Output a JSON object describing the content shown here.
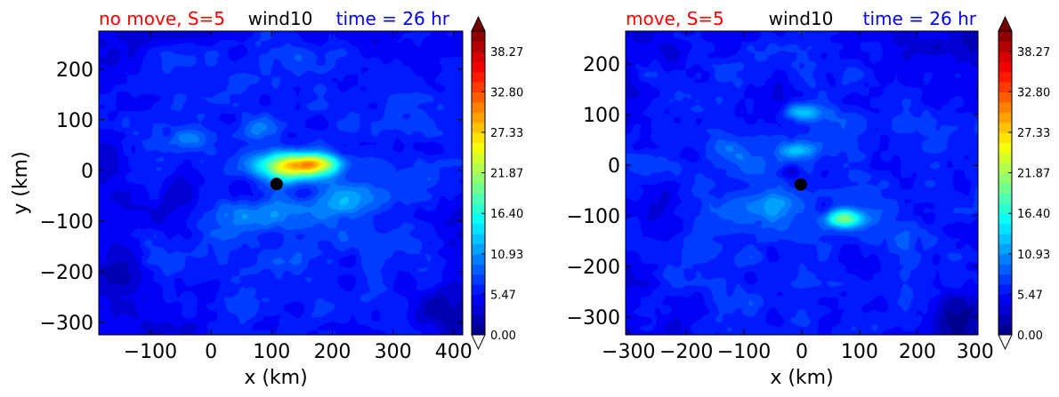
{
  "chart_data": [
    {
      "type": "heatmap",
      "variant": "filled-contour",
      "title_left": "no move, S=5",
      "title_left_color": "#ff0000",
      "title_center": "wind10",
      "title_center_color": "#000000",
      "title_right": "time = 26 hr",
      "title_right_color": "#0000ff",
      "xlabel": "x (km)",
      "ylabel": "y (km)",
      "xlim": [
        -185,
        415
      ],
      "ylim": [
        -325,
        275
      ],
      "xticks": [
        -100,
        0,
        100,
        200,
        300,
        400
      ],
      "xtick_labels": [
        "−100",
        "0",
        "100",
        "200",
        "300",
        "400"
      ],
      "yticks": [
        200,
        100,
        0,
        -100,
        -200,
        -300
      ],
      "ytick_labels": [
        "200",
        "100",
        "0",
        "−100",
        "−200",
        "−300"
      ],
      "marker": {
        "x": 108,
        "y": -27,
        "color": "#000000"
      },
      "background_level": 6.5,
      "features": [
        {
          "x": 140,
          "y": 10,
          "sx": 60,
          "sy": 25,
          "value": 18
        },
        {
          "x": 175,
          "y": 15,
          "sx": 35,
          "sy": 18,
          "value": 8
        },
        {
          "x": 100,
          "y": 0,
          "sx": 50,
          "sy": 45,
          "value": 4
        },
        {
          "x": 210,
          "y": -60,
          "sx": 55,
          "sy": 40,
          "value": 6
        },
        {
          "x": 60,
          "y": -80,
          "sx": 70,
          "sy": 50,
          "value": 4
        },
        {
          "x": 80,
          "y": 85,
          "sx": 30,
          "sy": 25,
          "value": 4
        },
        {
          "x": -40,
          "y": 60,
          "sx": 25,
          "sy": 20,
          "value": 5
        },
        {
          "x": 60,
          "y": -40,
          "sx": 30,
          "sy": 45,
          "value": -3.5
        },
        {
          "x": 150,
          "y": -40,
          "sx": 25,
          "sy": 20,
          "value": -3
        },
        {
          "x": -60,
          "y": -80,
          "sx": 40,
          "sy": 60,
          "value": -3
        },
        {
          "x": -140,
          "y": -200,
          "sx": 35,
          "sy": 35,
          "value": -3.5
        },
        {
          "x": 20,
          "y": 100,
          "sx": 40,
          "sy": 25,
          "value": -2
        },
        {
          "x": -150,
          "y": 0,
          "sx": 40,
          "sy": 100,
          "value": -2
        },
        {
          "x": 380,
          "y": -280,
          "sx": 60,
          "sy": 40,
          "value": -2.5
        }
      ],
      "colorbar": {
        "min": 0,
        "max": 41,
        "ticks": [
          0.0,
          5.47,
          10.93,
          16.4,
          21.87,
          27.33,
          32.8,
          38.27
        ],
        "tick_labels": [
          "0.00",
          "5.47",
          "10.93",
          "16.40",
          "21.87",
          "27.33",
          "32.80",
          "38.27"
        ],
        "colormap": "jet",
        "levels": 30
      }
    },
    {
      "type": "heatmap",
      "variant": "filled-contour",
      "title_left": "move, S=5",
      "title_left_color": "#ff0000",
      "title_center": "wind10",
      "title_center_color": "#000000",
      "title_right": "time = 26 hr",
      "title_right_color": "#0000ff",
      "xlabel": "x (km)",
      "ylabel": "",
      "xlim": [
        -305,
        305
      ],
      "ylim": [
        -335,
        265
      ],
      "xticks": [
        -300,
        -200,
        -100,
        0,
        100,
        200,
        300
      ],
      "xtick_labels": [
        "−300",
        "−200",
        "−100",
        "0",
        "100",
        "200",
        "300"
      ],
      "yticks": [
        200,
        100,
        0,
        -100,
        -200,
        -300
      ],
      "ytick_labels": [
        "200",
        "100",
        "0",
        "−100",
        "−200",
        "−300"
      ],
      "marker": {
        "x": -2,
        "y": -38,
        "color": "#000000"
      },
      "background_level": 6.5,
      "features": [
        {
          "x": 75,
          "y": -105,
          "sx": 30,
          "sy": 18,
          "value": 14
        },
        {
          "x": 0,
          "y": 105,
          "sx": 30,
          "sy": 18,
          "value": 8
        },
        {
          "x": -10,
          "y": 30,
          "sx": 30,
          "sy": 15,
          "value": 6
        },
        {
          "x": -50,
          "y": -80,
          "sx": 90,
          "sy": 40,
          "value": 4
        },
        {
          "x": -120,
          "y": 30,
          "sx": 45,
          "sy": 40,
          "value": 3
        },
        {
          "x": -20,
          "y": -10,
          "sx": 20,
          "sy": 15,
          "value": -4
        },
        {
          "x": 40,
          "y": -80,
          "sx": 25,
          "sy": 20,
          "value": -3
        },
        {
          "x": -240,
          "y": -90,
          "sx": 35,
          "sy": 45,
          "value": -3
        },
        {
          "x": -200,
          "y": 20,
          "sx": 30,
          "sy": 30,
          "value": -2
        },
        {
          "x": -40,
          "y": 140,
          "sx": 30,
          "sy": 25,
          "value": -2
        },
        {
          "x": 100,
          "y": -200,
          "sx": 50,
          "sy": 40,
          "value": -1.5
        },
        {
          "x": 280,
          "y": 240,
          "sx": 50,
          "sy": 40,
          "value": -2.5
        },
        {
          "x": 280,
          "y": -300,
          "sx": 50,
          "sy": 40,
          "value": -2.5
        }
      ],
      "colorbar": {
        "min": 0,
        "max": 41,
        "ticks": [
          0.0,
          5.47,
          10.93,
          16.4,
          21.87,
          27.33,
          32.8,
          38.27
        ],
        "tick_labels": [
          "0.00",
          "5.47",
          "10.93",
          "16.40",
          "21.87",
          "27.33",
          "32.80",
          "38.27"
        ],
        "colormap": "jet",
        "levels": 30
      }
    }
  ]
}
